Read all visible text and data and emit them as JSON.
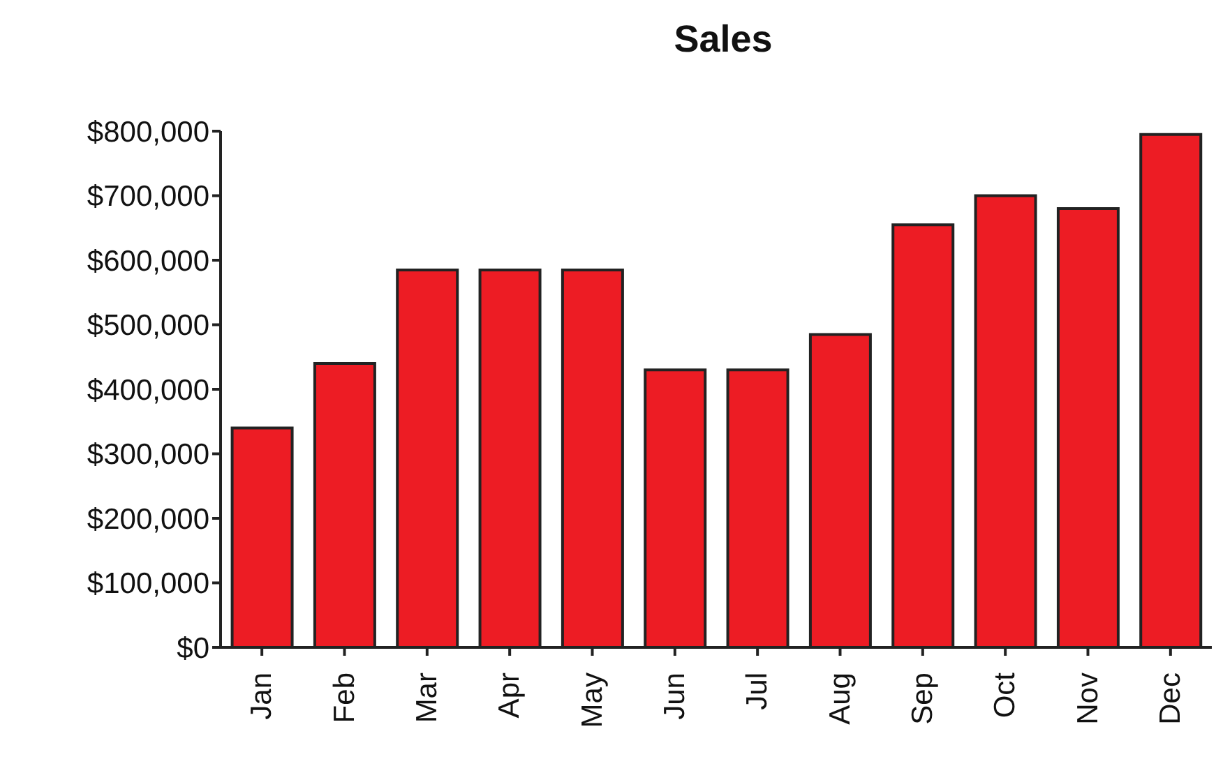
{
  "chart_data": {
    "type": "bar",
    "title": "Sales",
    "categories": [
      "Jan",
      "Feb",
      "Mar",
      "Apr",
      "May",
      "Jun",
      "Jul",
      "Aug",
      "Sep",
      "Oct",
      "Nov",
      "Dec"
    ],
    "values": [
      340000,
      440000,
      585000,
      585000,
      585000,
      430000,
      430000,
      485000,
      655000,
      700000,
      680000,
      795000
    ],
    "color": "#ed1c24",
    "ylim": [
      0,
      800000
    ],
    "yticks": [
      {
        "value": 0,
        "label": "$0"
      },
      {
        "value": 100000,
        "label": "$100,000"
      },
      {
        "value": 200000,
        "label": "$200,000"
      },
      {
        "value": 300000,
        "label": "$300,000"
      },
      {
        "value": 400000,
        "label": "$400,000"
      },
      {
        "value": 500000,
        "label": "$500,000"
      },
      {
        "value": 600000,
        "label": "$600,000"
      },
      {
        "value": 700000,
        "label": "$700,000"
      },
      {
        "value": 800000,
        "label": "$800,000"
      }
    ],
    "grid": false,
    "legend": false
  }
}
